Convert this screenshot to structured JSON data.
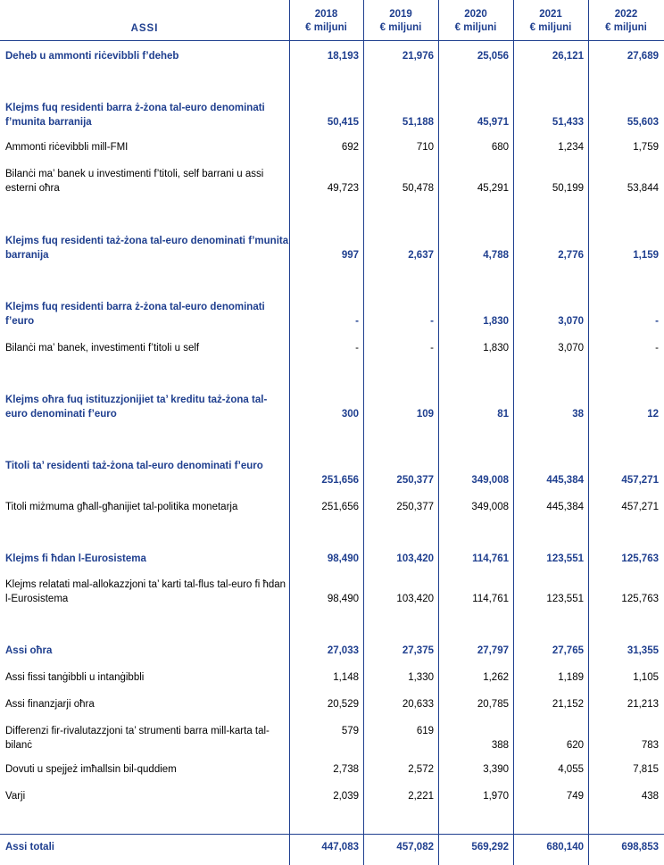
{
  "header": {
    "title": "ASSI",
    "columns": [
      {
        "year": "2018",
        "unit": "€ miljuni"
      },
      {
        "year": "2019",
        "unit": "€ miljuni"
      },
      {
        "year": "2020",
        "unit": "€ miljuni"
      },
      {
        "year": "2021",
        "unit": "€ miljuni"
      },
      {
        "year": "2022",
        "unit": "€ miljuni"
      }
    ]
  },
  "rows": [
    {
      "label": "Deheb u ammonti riċevibbli f’deheb",
      "bold": true,
      "values": [
        "18,193",
        "21,976",
        "25,056",
        "26,121",
        "27,689"
      ]
    },
    {
      "label": "Klejms fuq residenti barra ż-żona tal-euro denominati f’munita barranija",
      "bold": true,
      "values": [
        "50,415",
        "51,188",
        "45,971",
        "51,433",
        "55,603"
      ]
    },
    {
      "label": "Ammonti riċevibbli mill-FMI",
      "bold": false,
      "values": [
        "692",
        "710",
        "680",
        "1,234",
        "1,759"
      ]
    },
    {
      "label": "Bilanċi ma’ banek u investimenti f’titoli, self barrani u assi esterni oħra",
      "bold": false,
      "values": [
        "49,723",
        "50,478",
        "45,291",
        "50,199",
        "53,844"
      ]
    },
    {
      "label": "Klejms fuq residenti taż-żona tal-euro denominati f’munita barranija",
      "bold": true,
      "values": [
        "997",
        "2,637",
        "4,788",
        "2,776",
        "1,159"
      ]
    },
    {
      "label": "Klejms fuq residenti barra ż-żona tal-euro denominati f’euro",
      "bold": true,
      "values": [
        "-",
        "-",
        "1,830",
        "3,070",
        "-"
      ]
    },
    {
      "label": "Bilanċi ma’ banek, investimenti f’titoli u self",
      "bold": false,
      "values": [
        "-",
        "-",
        "1,830",
        "3,070",
        "-"
      ]
    },
    {
      "label": "Klejms oħra fuq istituzzjonijiet ta’ kreditu taż-żona tal-euro denominati f’euro",
      "bold": true,
      "values": [
        "300",
        "109",
        "81",
        "38",
        "12"
      ]
    },
    {
      "label": "Titoli ta’ residenti taż-żona tal-euro denominati f’euro",
      "bold": true,
      "values": [
        "251,656",
        "250,377",
        "349,008",
        "445,384",
        "457,271"
      ]
    },
    {
      "label": "Titoli miżmuma għall-għanijiet tal-politika monetarja",
      "bold": false,
      "values": [
        "251,656",
        "250,377",
        "349,008",
        "445,384",
        "457,271"
      ]
    },
    {
      "label": "Klejms fi ħdan l-Eurosistema",
      "bold": true,
      "values": [
        "98,490",
        "103,420",
        "114,761",
        "123,551",
        "125,763"
      ]
    },
    {
      "label": "Klejms relatati mal-allokazzjoni ta’ karti tal-flus tal-euro fi ħdan l-Eurosistema",
      "bold": false,
      "values": [
        "98,490",
        "103,420",
        "114,761",
        "123,551",
        "125,763"
      ]
    },
    {
      "label": "Assi oħra",
      "bold": true,
      "values": [
        "27,033",
        "27,375",
        "27,797",
        "27,765",
        "31,355"
      ]
    },
    {
      "label": "Assi fissi tanġibbli u intanġibbli",
      "bold": false,
      "values": [
        "1,148",
        "1,330",
        "1,262",
        "1,189",
        "1,105"
      ]
    },
    {
      "label": "Assi finanzjarji oħra",
      "bold": false,
      "values": [
        "20,529",
        "20,633",
        "20,785",
        "21,152",
        "21,213"
      ]
    },
    {
      "label": "Differenzi fir-rivalutazzjoni ta’ strumenti barra mill-karta tal-bilanċ",
      "bold": false,
      "values": [
        "579",
        "619",
        "388",
        "620",
        "783"
      ]
    },
    {
      "label": "Dovuti u spejjeż imħallsin bil-quddiem",
      "bold": false,
      "values": [
        "2,738",
        "2,572",
        "3,390",
        "4,055",
        "7,815"
      ]
    },
    {
      "label": "Varji",
      "bold": false,
      "values": [
        "2,039",
        "2,221",
        "1,970",
        "749",
        "438"
      ]
    },
    {
      "label": "Assi totali",
      "bold": true,
      "values": [
        "447,083",
        "457,082",
        "569,292",
        "680,140",
        "698,853"
      ]
    }
  ]
}
